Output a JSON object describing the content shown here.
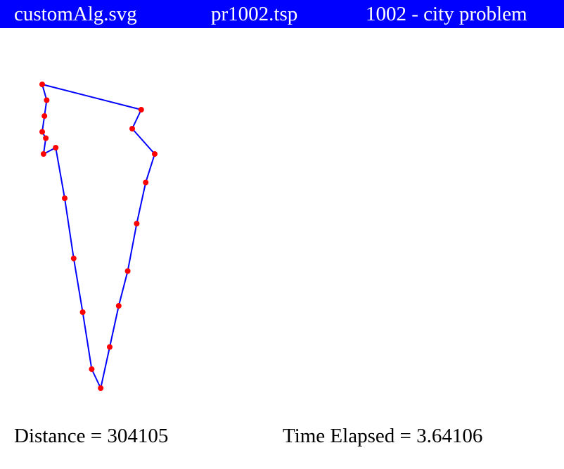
{
  "header": {
    "file_label": "customAlg.svg",
    "problem_label": "pr1002.tsp",
    "description_label": "1002 - city problem"
  },
  "footer": {
    "distance_text": "Distance = 304105",
    "time_text": "Time Elapsed = 3.64106"
  },
  "colors": {
    "header_background": "#0000ff",
    "header_text": "#ffffff",
    "route_line": "#0000ff",
    "city_marker": "#ff0000"
  },
  "chart_data": {
    "type": "scatter",
    "title": "",
    "xlabel": "",
    "ylabel": "",
    "grid": false,
    "legend": "none",
    "xlim": [
      0,
      100
    ],
    "ylim": [
      0,
      100
    ],
    "series": [
      {
        "points": [
          [
            0,
            100
          ],
          [
            1,
            95
          ],
          [
            0.5,
            90
          ],
          [
            0,
            85
          ],
          [
            0.8,
            83
          ],
          [
            0.3,
            78
          ],
          [
            3,
            80
          ],
          [
            5,
            64
          ],
          [
            7,
            45
          ],
          [
            9,
            28
          ],
          [
            11,
            10
          ],
          [
            13,
            4
          ],
          [
            15,
            17
          ],
          [
            17,
            30
          ],
          [
            19,
            41
          ],
          [
            21,
            56
          ],
          [
            23,
            69
          ],
          [
            25,
            78
          ],
          [
            20,
            86
          ],
          [
            22,
            92
          ]
        ]
      }
    ]
  }
}
